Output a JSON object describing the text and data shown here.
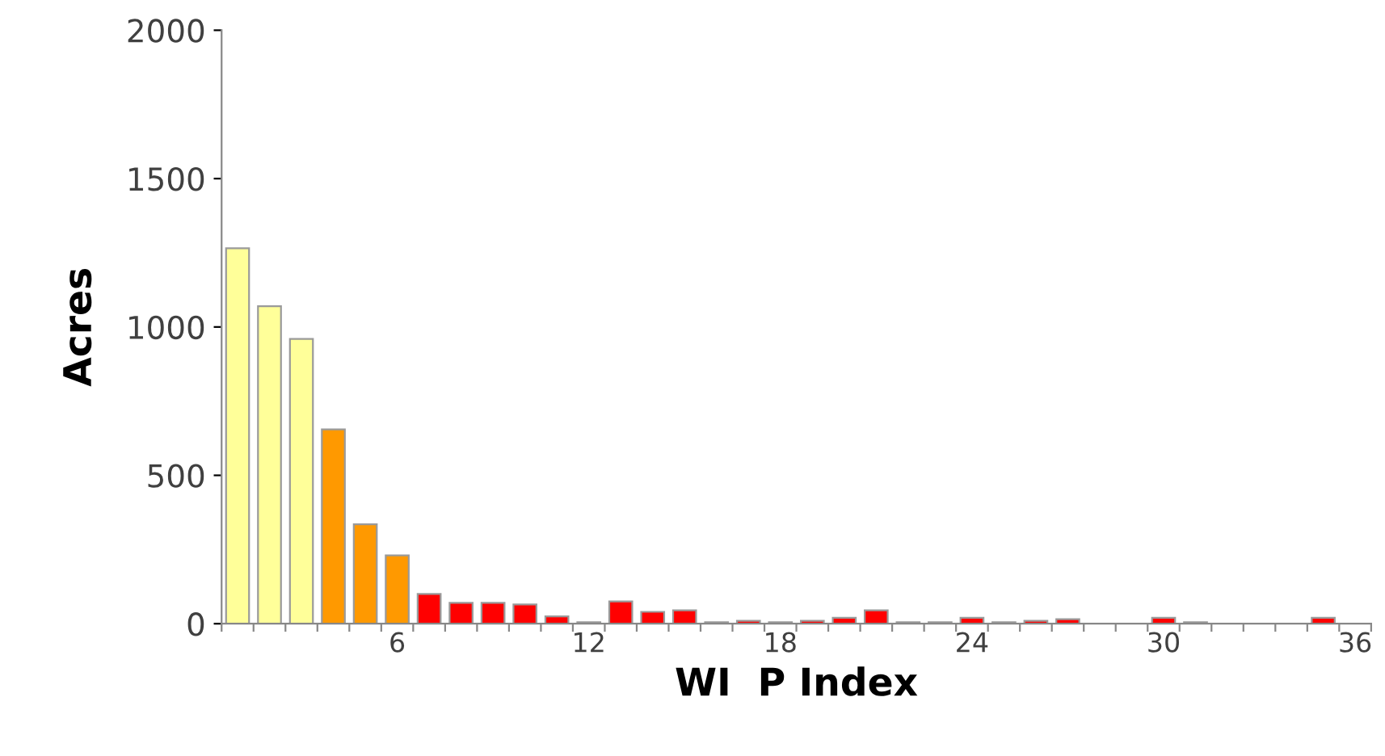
{
  "chart_data": {
    "type": "bar",
    "xlabel": "WI  P Index",
    "ylabel": "Acres",
    "categories": [
      null,
      null,
      null,
      null,
      null,
      "6",
      null,
      null,
      null,
      null,
      null,
      "12",
      null,
      null,
      null,
      null,
      null,
      "18",
      null,
      null,
      null,
      null,
      null,
      "24",
      null,
      null,
      null,
      null,
      null,
      "30",
      null,
      null,
      null,
      null,
      null,
      "36"
    ],
    "values": [
      1265,
      1070,
      960,
      655,
      335,
      230,
      100,
      70,
      70,
      65,
      25,
      5,
      75,
      40,
      45,
      5,
      10,
      5,
      10,
      20,
      45,
      5,
      5,
      20,
      5,
      10,
      15,
      0,
      0,
      20,
      5,
      0,
      0,
      0,
      20,
      0
    ],
    "colors": [
      "#ffff99",
      "#ffff99",
      "#ffff99",
      "#ff9900",
      "#ff9900",
      "#ff9900",
      "#ff0000",
      "#ff0000",
      "#ff0000",
      "#ff0000",
      "#ff0000",
      "#ff0000",
      "#ff0000",
      "#ff0000",
      "#ff0000",
      "#ff0000",
      "#ff0000",
      "#ff0000",
      "#ff0000",
      "#ff0000",
      "#ff0000",
      "#ff0000",
      "#ff0000",
      "#ff0000",
      "#ff0000",
      "#ff0000",
      "#ff0000",
      "#ff0000",
      "#ff0000",
      "#ff0000",
      "#ff0000",
      "#ff0000",
      "#ff0000",
      "#ff0000",
      "#ff0000",
      "#ff0000"
    ],
    "ylim": [
      0,
      2000
    ],
    "yticks": [
      0,
      500,
      1000,
      1500,
      2000
    ],
    "grid": false,
    "legend": false
  }
}
